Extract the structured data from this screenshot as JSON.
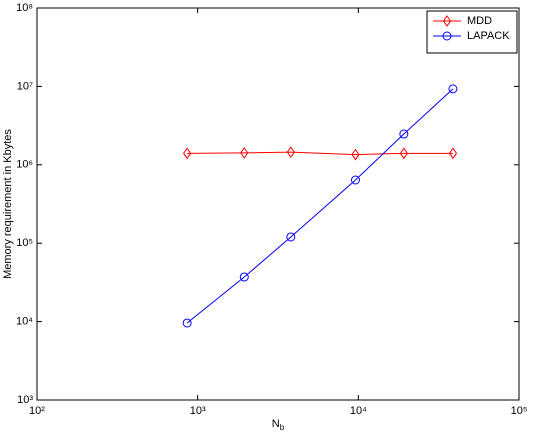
{
  "chart_data": {
    "type": "line",
    "xlabel": {
      "text": "N",
      "sub": "b"
    },
    "ylabel": "Memory requirement in Kbytes",
    "x": [
      860,
      1950,
      3800,
      9600,
      19200,
      38800
    ],
    "series": [
      {
        "name": "MDD",
        "color": "#ff0000",
        "marker": "diamond",
        "values": [
          1400000,
          1420000,
          1450000,
          1350000,
          1400000,
          1400000
        ]
      },
      {
        "name": "LAPACK",
        "color": "#0000ff",
        "marker": "circle",
        "values": [
          9600,
          37000,
          120000,
          640000,
          2470000,
          9300000
        ]
      }
    ],
    "xlog": true,
    "ylog": true,
    "xlim": [
      100,
      100000
    ],
    "ylim": [
      1000,
      100000000
    ],
    "xticks": [
      {
        "value": 100,
        "label": "10²"
      },
      {
        "value": 1000,
        "label": "10³"
      },
      {
        "value": 10000,
        "label": "10⁴"
      },
      {
        "value": 100000,
        "label": "10⁵"
      }
    ],
    "yticks": [
      {
        "value": 1000,
        "label": "10³"
      },
      {
        "value": 10000,
        "label": "10⁴"
      },
      {
        "value": 100000,
        "label": "10⁵"
      },
      {
        "value": 1000000,
        "label": "10⁶"
      },
      {
        "value": 10000000,
        "label": "10⁷"
      },
      {
        "value": 100000000,
        "label": "10⁸"
      }
    ],
    "legend": "upper right"
  }
}
